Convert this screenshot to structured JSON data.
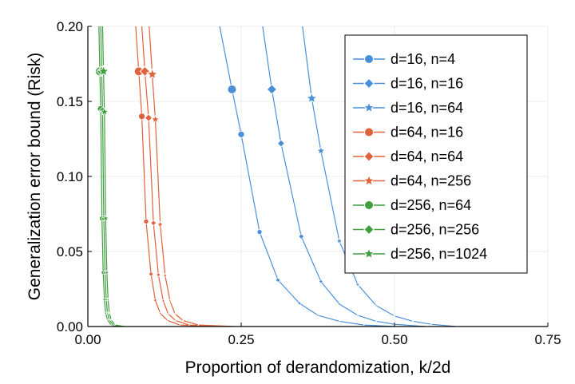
{
  "chart_data": {
    "type": "line",
    "title": "",
    "xlabel": "Proportion of derandomization, k/2d",
    "ylabel": "Generalization error bound (Risk)",
    "xlim": [
      0,
      0.75
    ],
    "ylim": [
      0,
      0.2
    ],
    "x_ticks": [
      0.0,
      0.25,
      0.5,
      0.75
    ],
    "x_tick_labels": [
      "0.00",
      "0.25",
      "0.50",
      "0.75"
    ],
    "y_ticks": [
      0.0,
      0.05,
      0.1,
      0.15,
      0.2
    ],
    "y_tick_labels": [
      "0.00",
      "0.05",
      "0.10",
      "0.15",
      "0.20"
    ],
    "grid": true,
    "legend_position": "top-right",
    "colors": {
      "d16": "#4a90d9",
      "d64": "#e0623a",
      "d256": "#3f9f3f",
      "marker_edge": "#ffffff"
    },
    "series": [
      {
        "name": "d=16, n=4",
        "color": "#4a90d9",
        "marker": "circle",
        "x": [
          0.215,
          0.235,
          0.25,
          0.28,
          0.31,
          0.345,
          0.375,
          0.41,
          0.45,
          0.5
        ],
        "y": [
          0.2,
          0.158,
          0.128,
          0.063,
          0.031,
          0.0155,
          0.0075,
          0.0035,
          0.001,
          0.0
        ]
      },
      {
        "name": "d=16, n=16",
        "color": "#4a90d9",
        "marker": "diamond",
        "x": [
          0.285,
          0.3,
          0.315,
          0.348,
          0.38,
          0.41,
          0.44,
          0.47,
          0.5,
          0.55
        ],
        "y": [
          0.2,
          0.158,
          0.122,
          0.06,
          0.03,
          0.015,
          0.0075,
          0.0035,
          0.0015,
          0.0
        ]
      },
      {
        "name": "d=16, n=64",
        "color": "#4a90d9",
        "marker": "star",
        "x": [
          0.35,
          0.365,
          0.38,
          0.41,
          0.44,
          0.47,
          0.5,
          0.53,
          0.56,
          0.6
        ],
        "y": [
          0.2,
          0.152,
          0.117,
          0.057,
          0.028,
          0.014,
          0.007,
          0.0035,
          0.0015,
          0.0
        ]
      },
      {
        "name": "d=64, n=16",
        "color": "#e0623a",
        "marker": "circle",
        "x": [
          0.078,
          0.083,
          0.088,
          0.095,
          0.103,
          0.11,
          0.118,
          0.13,
          0.15,
          0.2
        ],
        "y": [
          0.2,
          0.17,
          0.14,
          0.07,
          0.035,
          0.0175,
          0.0088,
          0.004,
          0.001,
          0.0
        ]
      },
      {
        "name": "d=64, n=64",
        "color": "#e0623a",
        "marker": "diamond",
        "x": [
          0.088,
          0.093,
          0.099,
          0.107,
          0.115,
          0.123,
          0.131,
          0.143,
          0.165,
          0.22
        ],
        "y": [
          0.2,
          0.17,
          0.139,
          0.069,
          0.0345,
          0.017,
          0.0085,
          0.004,
          0.001,
          0.0
        ]
      },
      {
        "name": "d=64, n=256",
        "color": "#e0623a",
        "marker": "star",
        "x": [
          0.1,
          0.105,
          0.11,
          0.118,
          0.126,
          0.134,
          0.142,
          0.155,
          0.18,
          0.24
        ],
        "y": [
          0.2,
          0.168,
          0.138,
          0.068,
          0.034,
          0.017,
          0.0085,
          0.004,
          0.001,
          0.0
        ]
      },
      {
        "name": "d=256, n=64",
        "color": "#3f9f3f",
        "marker": "circle",
        "x": [
          0.018,
          0.0195,
          0.021,
          0.023,
          0.025,
          0.027,
          0.029,
          0.032,
          0.038,
          0.05
        ],
        "y": [
          0.2,
          0.17,
          0.145,
          0.072,
          0.036,
          0.018,
          0.009,
          0.0045,
          0.001,
          0.0
        ]
      },
      {
        "name": "d=256, n=256",
        "color": "#3f9f3f",
        "marker": "diamond",
        "x": [
          0.021,
          0.0225,
          0.024,
          0.026,
          0.028,
          0.03,
          0.032,
          0.035,
          0.041,
          0.055
        ],
        "y": [
          0.2,
          0.17,
          0.144,
          0.072,
          0.036,
          0.018,
          0.009,
          0.0045,
          0.001,
          0.0
        ]
      },
      {
        "name": "d=256, n=1024",
        "color": "#3f9f3f",
        "marker": "star",
        "x": [
          0.024,
          0.0255,
          0.027,
          0.029,
          0.031,
          0.033,
          0.035,
          0.038,
          0.044,
          0.06
        ],
        "y": [
          0.2,
          0.17,
          0.143,
          0.072,
          0.036,
          0.018,
          0.009,
          0.0045,
          0.001,
          0.0
        ]
      }
    ]
  }
}
